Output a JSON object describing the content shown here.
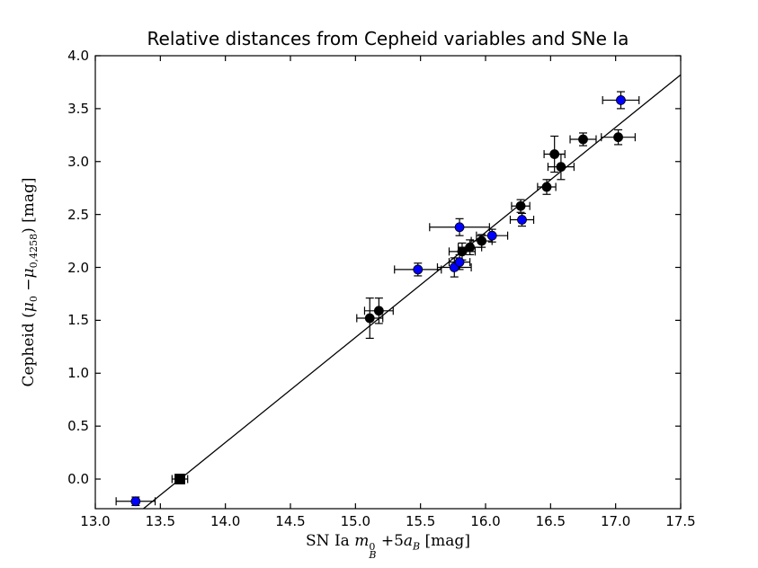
{
  "title": "Relative distances from Cepheid variables and SNe Ia",
  "labels": {
    "x": {
      "prefix": "SN Ia ",
      "m": "m",
      "m_sup": "0",
      "m_sub": "B",
      "plus": " +5",
      "a": "a",
      "a_sub": "B",
      "unit": "  [mag]"
    },
    "y": {
      "prefix": "Cepheid (",
      "mu1": "μ",
      "mu1_sub": "0",
      "minus": " −",
      "mu2": "μ",
      "mu2_sub": "0,4258",
      "close": ")",
      "unit": "  [mag]"
    }
  },
  "chart_data": {
    "type": "scatter",
    "title": "Relative distances from Cepheid variables and SNe Ia",
    "xlabel": "SN Ia m_B^0 + 5a_B  [mag]",
    "ylabel": "Cepheid (mu_0 - mu_0,4258)  [mag]",
    "xlim": [
      13.0,
      17.5
    ],
    "ylim": [
      -0.28,
      4.0
    ],
    "xticks": [
      "13.0",
      "13.5",
      "14.0",
      "14.5",
      "15.0",
      "15.5",
      "16.0",
      "16.5",
      "17.0",
      "17.5"
    ],
    "yticks": [
      "0.0",
      "0.5",
      "1.0",
      "1.5",
      "2.0",
      "2.5",
      "3.0",
      "3.5",
      "4.0"
    ],
    "grid": false,
    "legend": false,
    "axis_color": "#000000",
    "fit_line": {
      "x1": 13.37,
      "y1": -0.28,
      "x2": 17.5,
      "y2": 3.82,
      "color": "#000000"
    },
    "point_format": "[x, y, xerr, yerr]",
    "series": [
      {
        "name": "black-circle-points",
        "marker": "circle",
        "color": "#000000",
        "points": [
          [
            15.11,
            1.52,
            0.1,
            0.19
          ],
          [
            15.18,
            1.59,
            0.11,
            0.12
          ],
          [
            15.82,
            2.15,
            0.1,
            0.08
          ],
          [
            15.88,
            2.19,
            0.09,
            0.07
          ],
          [
            15.97,
            2.25,
            0.08,
            0.06
          ],
          [
            16.27,
            2.58,
            0.07,
            0.06
          ],
          [
            16.47,
            2.76,
            0.07,
            0.07
          ],
          [
            16.53,
            3.07,
            0.08,
            0.17
          ],
          [
            16.58,
            2.95,
            0.1,
            0.12
          ],
          [
            16.75,
            3.21,
            0.1,
            0.06
          ],
          [
            17.02,
            3.23,
            0.13,
            0.07
          ]
        ]
      },
      {
        "name": "blue-circle-points",
        "marker": "circle",
        "color": "#0000ff",
        "points": [
          [
            13.31,
            -0.21,
            0.15,
            0.04
          ],
          [
            15.48,
            1.98,
            0.18,
            0.06
          ],
          [
            15.76,
            2.0,
            0.13,
            0.09
          ],
          [
            15.8,
            2.05,
            0.08,
            0.07
          ],
          [
            15.8,
            2.38,
            0.23,
            0.08
          ],
          [
            16.05,
            2.3,
            0.12,
            0.06
          ],
          [
            16.28,
            2.45,
            0.09,
            0.06
          ],
          [
            17.04,
            3.58,
            0.14,
            0.08
          ]
        ]
      },
      {
        "name": "black-square-anchor",
        "marker": "square",
        "color": "#000000",
        "points": [
          [
            13.65,
            0.0,
            0.06,
            0.04
          ]
        ]
      }
    ]
  }
}
